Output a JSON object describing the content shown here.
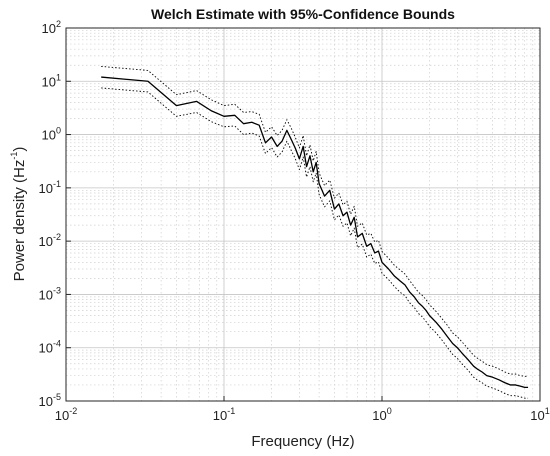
{
  "chart_data": {
    "type": "line",
    "title": "Welch Estimate with 95%-Confidence Bounds",
    "xlabel": "Frequency (Hz)",
    "ylabel": {
      "prefix": "Power density (Hz",
      "sup": "-1",
      "suffix": ")"
    },
    "x_scale": "log",
    "y_scale": "log",
    "xlim": [
      0.01,
      10
    ],
    "ylim": [
      1e-05,
      100
    ],
    "x_ticks": [
      {
        "value": 0.01,
        "base": "10",
        "exp": "-2"
      },
      {
        "value": 0.1,
        "base": "10",
        "exp": "-1"
      },
      {
        "value": 1,
        "base": "10",
        "exp": "0"
      },
      {
        "value": 10,
        "base": "10",
        "exp": "1"
      }
    ],
    "y_ticks": [
      {
        "value": 1e-05,
        "base": "10",
        "exp": "-5"
      },
      {
        "value": 0.0001,
        "base": "10",
        "exp": "-4"
      },
      {
        "value": 0.001,
        "base": "10",
        "exp": "-3"
      },
      {
        "value": 0.01,
        "base": "10",
        "exp": "-2"
      },
      {
        "value": 0.1,
        "base": "10",
        "exp": "-1"
      },
      {
        "value": 1,
        "base": "10",
        "exp": "0"
      },
      {
        "value": 10,
        "base": "10",
        "exp": "1"
      },
      {
        "value": 100,
        "base": "10",
        "exp": "2"
      }
    ],
    "grid": true,
    "minor_grid": true,
    "legend": "none",
    "series": [
      {
        "style": "solid",
        "color": "#000000",
        "x": [
          0.0167,
          0.033,
          0.05,
          0.067,
          0.083,
          0.1,
          0.117,
          0.133,
          0.15,
          0.167,
          0.183,
          0.2,
          0.217,
          0.233,
          0.25,
          0.267,
          0.283,
          0.3,
          0.317,
          0.333,
          0.35,
          0.367,
          0.383,
          0.4,
          0.433,
          0.467,
          0.5,
          0.533,
          0.567,
          0.6,
          0.633,
          0.667,
          0.7,
          0.75,
          0.8,
          0.85,
          0.9,
          0.95,
          1.0,
          1.1,
          1.2,
          1.3,
          1.4,
          1.5,
          1.6,
          1.7,
          1.8,
          1.9,
          2.0,
          2.2,
          2.4,
          2.6,
          2.8,
          3.0,
          3.2,
          3.5,
          3.8,
          4.0,
          4.3,
          4.6,
          5.0,
          5.5,
          6.0,
          6.5,
          7.0,
          7.5,
          8.0,
          8.4
        ],
        "y": [
          12,
          10,
          3.5,
          4.2,
          2.8,
          2.2,
          2.3,
          1.6,
          1.7,
          1.5,
          0.7,
          0.9,
          0.6,
          0.75,
          1.2,
          0.8,
          0.55,
          0.35,
          0.6,
          0.25,
          0.4,
          0.2,
          0.3,
          0.12,
          0.07,
          0.09,
          0.04,
          0.05,
          0.03,
          0.035,
          0.02,
          0.028,
          0.012,
          0.014,
          0.008,
          0.009,
          0.006,
          0.0065,
          0.004,
          0.003,
          0.0022,
          0.0018,
          0.0015,
          0.0011,
          0.0009,
          0.0007,
          0.0006,
          0.0005,
          0.0004,
          0.0003,
          0.00022,
          0.00016,
          0.00012,
          0.0001,
          8e-05,
          6e-05,
          4.5e-05,
          4e-05,
          3.5e-05,
          3e-05,
          2.8e-05,
          2.5e-05,
          2.2e-05,
          2e-05,
          2e-05,
          1.9e-05,
          1.8e-05,
          1.8e-05
        ]
      },
      {
        "style": "dotted",
        "color": "#000000",
        "x": [
          0.0167,
          0.033,
          0.05,
          0.067,
          0.083,
          0.1,
          0.117,
          0.133,
          0.15,
          0.167,
          0.183,
          0.2,
          0.217,
          0.233,
          0.25,
          0.267,
          0.283,
          0.3,
          0.317,
          0.333,
          0.35,
          0.367,
          0.383,
          0.4,
          0.433,
          0.467,
          0.5,
          0.533,
          0.567,
          0.6,
          0.633,
          0.667,
          0.7,
          0.75,
          0.8,
          0.85,
          0.9,
          0.95,
          1.0,
          1.1,
          1.2,
          1.3,
          1.4,
          1.5,
          1.6,
          1.7,
          1.8,
          1.9,
          2.0,
          2.2,
          2.4,
          2.6,
          2.8,
          3.0,
          3.2,
          3.5,
          3.8,
          4.0,
          4.3,
          4.6,
          5.0,
          5.5,
          6.0,
          6.5,
          7.0,
          7.5,
          8.0,
          8.4
        ],
        "y": [
          19,
          16,
          5.6,
          6.7,
          4.5,
          3.5,
          3.7,
          2.6,
          2.7,
          2.4,
          1.1,
          1.4,
          0.96,
          1.2,
          1.9,
          1.3,
          0.88,
          0.56,
          0.96,
          0.4,
          0.64,
          0.32,
          0.48,
          0.19,
          0.11,
          0.14,
          0.064,
          0.08,
          0.048,
          0.056,
          0.032,
          0.045,
          0.019,
          0.022,
          0.013,
          0.014,
          0.0096,
          0.0104,
          0.0064,
          0.0048,
          0.0035,
          0.0029,
          0.0024,
          0.0018,
          0.0014,
          0.0011,
          0.00096,
          0.0008,
          0.00064,
          0.00048,
          0.00035,
          0.00026,
          0.00019,
          0.00016,
          0.00013,
          9.6e-05,
          7.2e-05,
          6.4e-05,
          5.6e-05,
          4.8e-05,
          4.5e-05,
          4e-05,
          3.5e-05,
          3.2e-05,
          3.2e-05,
          3e-05,
          2.9e-05,
          2.9e-05
        ]
      },
      {
        "style": "dotted",
        "color": "#000000",
        "x": [
          0.0167,
          0.033,
          0.05,
          0.067,
          0.083,
          0.1,
          0.117,
          0.133,
          0.15,
          0.167,
          0.183,
          0.2,
          0.217,
          0.233,
          0.25,
          0.267,
          0.283,
          0.3,
          0.317,
          0.333,
          0.35,
          0.367,
          0.383,
          0.4,
          0.433,
          0.467,
          0.5,
          0.533,
          0.567,
          0.6,
          0.633,
          0.667,
          0.7,
          0.75,
          0.8,
          0.85,
          0.9,
          0.95,
          1.0,
          1.1,
          1.2,
          1.3,
          1.4,
          1.5,
          1.6,
          1.7,
          1.8,
          1.9,
          2.0,
          2.2,
          2.4,
          2.6,
          2.8,
          3.0,
          3.2,
          3.5,
          3.8,
          4.0,
          4.3,
          4.6,
          5.0,
          5.5,
          6.0,
          6.5,
          7.0,
          7.5,
          8.0,
          8.4
        ],
        "y": [
          7.5,
          6.3,
          2.2,
          2.6,
          1.75,
          1.4,
          1.45,
          1.0,
          1.07,
          0.94,
          0.44,
          0.57,
          0.38,
          0.47,
          0.75,
          0.5,
          0.35,
          0.22,
          0.38,
          0.16,
          0.25,
          0.13,
          0.19,
          0.075,
          0.044,
          0.057,
          0.025,
          0.031,
          0.019,
          0.022,
          0.0126,
          0.0176,
          0.0075,
          0.0088,
          0.005,
          0.0057,
          0.0038,
          0.0041,
          0.0025,
          0.0019,
          0.0014,
          0.0011,
          0.00094,
          0.00069,
          0.00057,
          0.00044,
          0.00038,
          0.00031,
          0.00025,
          0.00019,
          0.000138,
          0.0001,
          7.5e-05,
          6.3e-05,
          5e-05,
          3.8e-05,
          2.8e-05,
          2.5e-05,
          2.2e-05,
          1.9e-05,
          1.76e-05,
          1.57e-05,
          1.38e-05,
          1.26e-05,
          1.26e-05,
          1.2e-05,
          1.13e-05,
          1.13e-05
        ]
      }
    ]
  }
}
